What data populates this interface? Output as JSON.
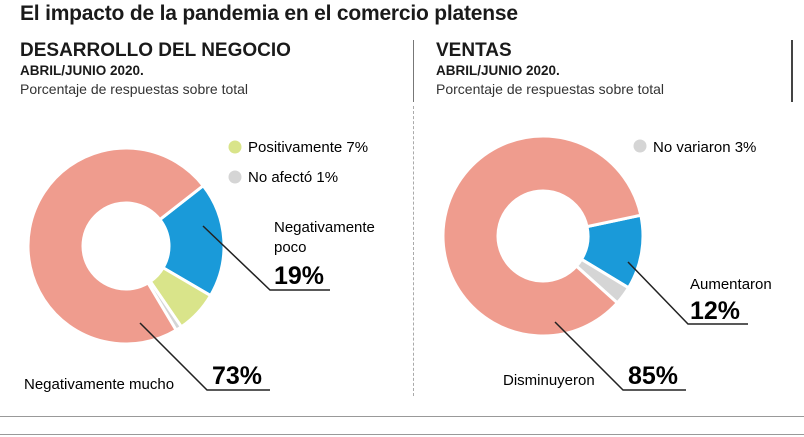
{
  "title": "El impacto de la pandemia en el comercio platense",
  "chart_data": [
    {
      "type": "pie",
      "title": "DESARROLLO DEL NEGOCIO",
      "subtitle": "ABRIL/JUNIO 2020.",
      "note": "Porcentaje de respuestas sobre total",
      "slices": [
        {
          "label": "Negativamente poco",
          "value": 19,
          "color": "#1a9ad9"
        },
        {
          "label": "Positivamente",
          "value": 7,
          "color": "#d9e48a"
        },
        {
          "label": "No afectó",
          "value": 1,
          "color": "#d5d5d5"
        },
        {
          "label": "Negativamente mucho",
          "value": 73,
          "color": "#ef9c8e"
        }
      ],
      "labels": {
        "positivamente": "Positivamente 7%",
        "no_afecto": "No afectó 1%",
        "neg_poco": [
          "Negativamente",
          "poco"
        ],
        "neg_poco_pct": "19%",
        "neg_mucho": "Negativamente mucho",
        "neg_mucho_pct": "73%"
      }
    },
    {
      "type": "pie",
      "title": "VENTAS",
      "subtitle": "ABRIL/JUNIO 2020.",
      "note": "Porcentaje de respuestas sobre total",
      "slices": [
        {
          "label": "Aumentaron",
          "value": 12,
          "color": "#1a9ad9"
        },
        {
          "label": "No variaron",
          "value": 3,
          "color": "#d5d5d5"
        },
        {
          "label": "Disminuyeron",
          "value": 85,
          "color": "#ef9c8e"
        }
      ],
      "labels": {
        "no_variaron": "No variaron 3%",
        "aumentaron": "Aumentaron",
        "aumentaron_pct": "12%",
        "disminuyeron": "Disminuyeron",
        "disminuyeron_pct": "85%"
      }
    }
  ]
}
